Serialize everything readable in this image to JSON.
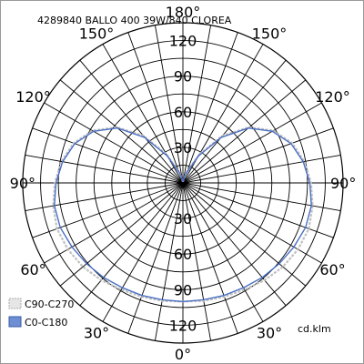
{
  "chart_data": {
    "type": "polar",
    "title": "4289840 BALLO 400 39W/840 CLOREA",
    "unit_label": "cd.klm",
    "radial_labels": [
      "30",
      "60",
      "90",
      "120"
    ],
    "radial_max": 135,
    "radial_step": 15,
    "angle_labels": [
      {
        "angle": 180,
        "text": "180°"
      },
      {
        "angle": 150,
        "text": "150°"
      },
      {
        "angle": -150,
        "text": "150°"
      },
      {
        "angle": 120,
        "text": "120°"
      },
      {
        "angle": -120,
        "text": "120°"
      },
      {
        "angle": 90,
        "text": "90°"
      },
      {
        "angle": -90,
        "text": "90°"
      },
      {
        "angle": 60,
        "text": "60°"
      },
      {
        "angle": -60,
        "text": "60°"
      },
      {
        "angle": 30,
        "text": "30°"
      },
      {
        "angle": -30,
        "text": "30°"
      },
      {
        "angle": 0,
        "text": "0°"
      }
    ],
    "series": [
      {
        "name": "C90-C270",
        "color": "#c0c0c0",
        "angles": [
          0,
          10,
          20,
          30,
          40,
          50,
          60,
          70,
          80,
          90,
          100,
          110,
          120,
          130,
          140,
          150,
          160,
          170,
          180
        ],
        "values": [
          100,
          101,
          102,
          104,
          107,
          110,
          112,
          113,
          111,
          108,
          104,
          98,
          88,
          73,
          52,
          28,
          10,
          3,
          1
        ]
      },
      {
        "name": "C0-C180",
        "color": "#4a6fc4",
        "angles": [
          0,
          10,
          20,
          30,
          40,
          50,
          60,
          70,
          80,
          90,
          100,
          110,
          120,
          130,
          140,
          150,
          160,
          170,
          180
        ],
        "values": [
          100,
          100,
          101,
          102,
          104,
          106,
          108,
          110,
          110,
          107,
          103,
          97,
          87,
          72,
          50,
          26,
          9,
          3,
          1
        ]
      }
    ]
  }
}
